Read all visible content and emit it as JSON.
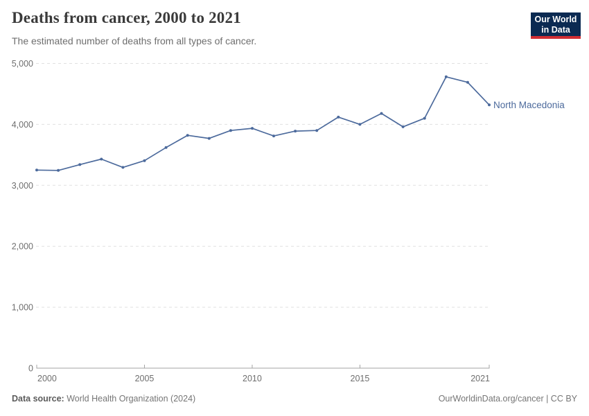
{
  "header": {
    "title": "Deaths from cancer, 2000 to 2021",
    "subtitle": "The estimated number of deaths from all types of cancer.",
    "logo": {
      "line1": "Our World",
      "line2": "in Data"
    }
  },
  "chart_data": {
    "type": "line",
    "title": "Deaths from cancer, 2000 to 2021",
    "series_label": "North Macedonia",
    "x": [
      2000,
      2001,
      2002,
      2003,
      2004,
      2005,
      2006,
      2007,
      2008,
      2009,
      2010,
      2011,
      2012,
      2013,
      2014,
      2015,
      2016,
      2017,
      2018,
      2019,
      2020,
      2021
    ],
    "values": [
      3250,
      3245,
      3340,
      3430,
      3295,
      3405,
      3620,
      3820,
      3770,
      3900,
      3935,
      3810,
      3890,
      3900,
      4120,
      4000,
      4180,
      3960,
      4100,
      4780,
      4690,
      4320
    ],
    "xlabel": "",
    "ylabel": "",
    "xlim": [
      2000,
      2021
    ],
    "ylim": [
      0,
      5000
    ],
    "grid": true,
    "legend_position": "end-of-line-label",
    "x_ticks": [
      {
        "value": 2000,
        "label": "2000"
      },
      {
        "value": 2005,
        "label": "2005"
      },
      {
        "value": 2010,
        "label": "2010"
      },
      {
        "value": 2015,
        "label": "2015"
      },
      {
        "value": 2021,
        "label": "2021"
      }
    ],
    "y_ticks": [
      {
        "value": 0,
        "label": "0"
      },
      {
        "value": 1000,
        "label": "1,000"
      },
      {
        "value": 2000,
        "label": "2,000"
      },
      {
        "value": 3000,
        "label": "3,000"
      },
      {
        "value": 4000,
        "label": "4,000"
      },
      {
        "value": 5000,
        "label": "5,000"
      }
    ],
    "line_color": "#4C6A9C",
    "grid_color": "#e0e0e0",
    "axis_color": "#a3a3a3",
    "tick_color": "#6e6e6e"
  },
  "footer": {
    "source_label": "Data source:",
    "source_text": "World Health Organization (2024)",
    "credit": "OurWorldinData.org/cancer | CC BY"
  },
  "colors": {
    "logo_bg": "#0b2a52",
    "logo_red": "#d12d33",
    "accent_blue": "#4C6A9C"
  }
}
